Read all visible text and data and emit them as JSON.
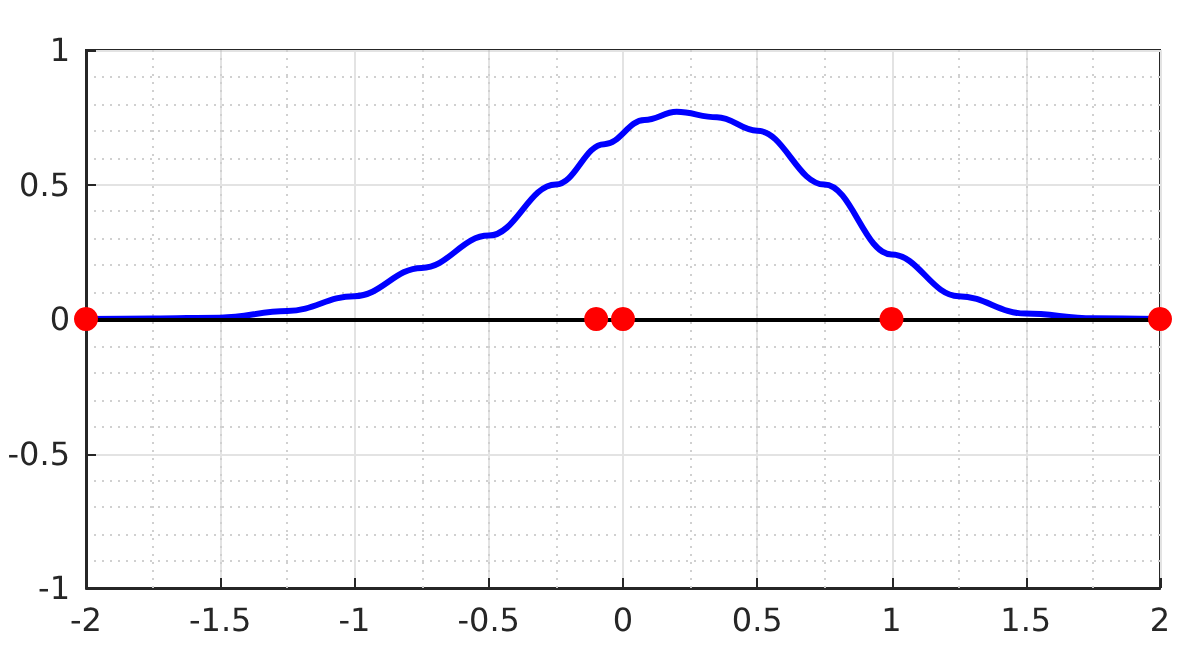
{
  "chart_data": {
    "type": "line",
    "xlim": [
      -2,
      2
    ],
    "xticks": [
      -2,
      -1.5,
      -1,
      -0.5,
      0,
      0.5,
      1,
      1.5,
      2
    ],
    "ylim": [
      -1,
      1
    ],
    "yticks": [
      -1,
      -0.5,
      0,
      0.5,
      1
    ],
    "grid": true,
    "series": [
      {
        "color": "#0000ff",
        "marker": "none",
        "line_style": "solid",
        "x": [
          -2,
          -1.75,
          -1.5,
          -1.25,
          -1,
          -0.75,
          -0.5,
          -0.25,
          -0.07,
          0.08,
          0.2,
          0.35,
          0.5,
          0.75,
          1,
          1.25,
          1.5,
          1.75,
          2
        ],
        "values": [
          0,
          0.002,
          0.005,
          0.03,
          0.085,
          0.19,
          0.31,
          0.5,
          0.65,
          0.74,
          0.77,
          0.75,
          0.7,
          0.5,
          0.24,
          0.085,
          0.02,
          0.003,
          0
        ]
      },
      {
        "type": "scatter",
        "color": "#ff0000",
        "marker": "circle",
        "x": [
          -2,
          -0.1,
          0,
          1,
          2
        ],
        "values": [
          0,
          0,
          0,
          0,
          0
        ]
      }
    ],
    "ref_lines": [
      {
        "axis": "y",
        "value": 0,
        "color": "#000000",
        "line_style": "solid"
      }
    ]
  }
}
